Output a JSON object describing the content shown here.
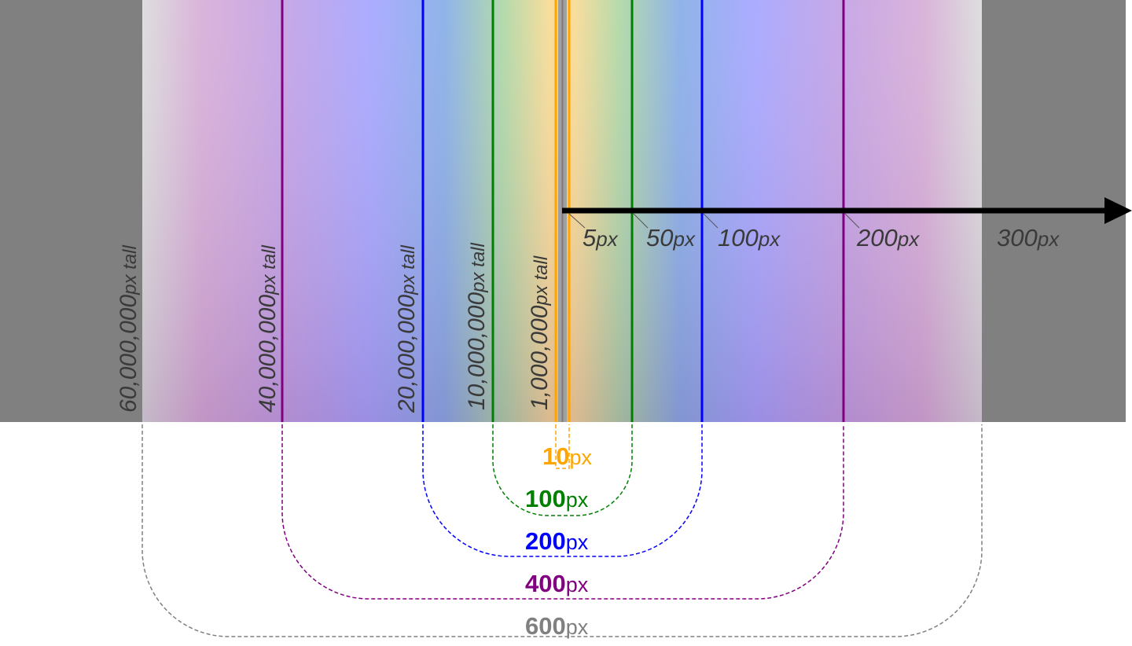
{
  "colors": {
    "background_dark": "#808080",
    "width_10": "#ffa500",
    "width_100": "#008000",
    "width_200": "#0000ff",
    "width_400": "#800080",
    "width_600": "#808080",
    "arrow": "#000000",
    "label_text": "#3a3a3a"
  },
  "tall_labels": [
    {
      "num": "60,000,000",
      "unit": "px tall"
    },
    {
      "num": "40,000,000",
      "unit": "px tall"
    },
    {
      "num": "20,000,000",
      "unit": "px tall"
    },
    {
      "num": "10,000,000",
      "unit": "px tall"
    },
    {
      "num": "1,000,000",
      "unit": "px tall"
    }
  ],
  "axis_labels": [
    {
      "num": "5",
      "unit": "px"
    },
    {
      "num": "50",
      "unit": "px"
    },
    {
      "num": "100",
      "unit": "px"
    },
    {
      "num": "200",
      "unit": "px"
    },
    {
      "num": "300",
      "unit": "px"
    }
  ],
  "width_labels": [
    {
      "num": "10",
      "unit": "px"
    },
    {
      "num": "100",
      "unit": "px"
    },
    {
      "num": "200",
      "unit": "px"
    },
    {
      "num": "400",
      "unit": "px"
    },
    {
      "num": "600",
      "unit": "px"
    }
  ]
}
